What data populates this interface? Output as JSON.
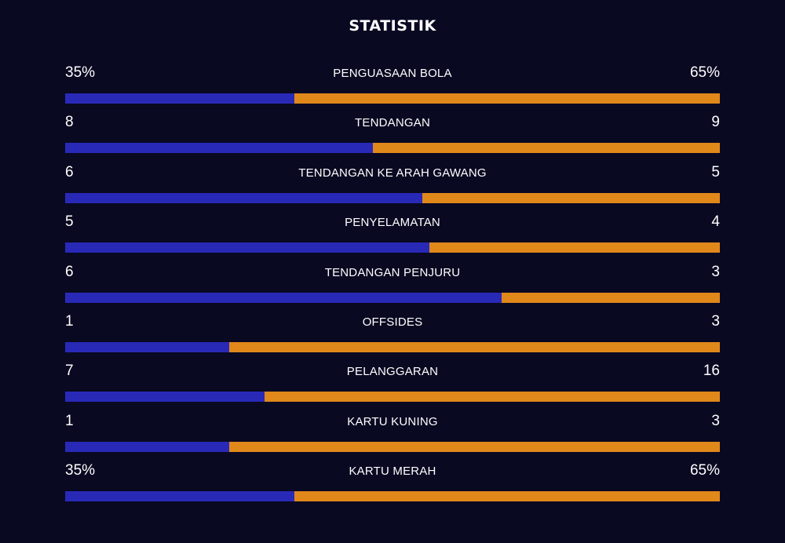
{
  "title": "STATISTIK",
  "colors": {
    "background": "#090922",
    "home": "#2929b8",
    "away": "#e0881a"
  },
  "stats": [
    {
      "label": "PENGUASAAN BOLA",
      "home": "35%",
      "away": "65%",
      "home_share": 0.35
    },
    {
      "label": "TENDANGAN",
      "home": "8",
      "away": "9",
      "home_share": 0.47
    },
    {
      "label": "TENDANGAN KE ARAH GAWANG",
      "home": "6",
      "away": "5",
      "home_share": 0.545
    },
    {
      "label": "PENYELAMATAN",
      "home": "5",
      "away": "4",
      "home_share": 0.556
    },
    {
      "label": "TENDANGAN PENJURU",
      "home": "6",
      "away": "3",
      "home_share": 0.667
    },
    {
      "label": "OFFSIDES",
      "home": "1",
      "away": "3",
      "home_share": 0.25
    },
    {
      "label": "PELANGGARAN",
      "home": "7",
      "away": "16",
      "home_share": 0.304
    },
    {
      "label": "KARTU KUNING",
      "home": "1",
      "away": "3",
      "home_share": 0.25
    },
    {
      "label": "KARTU MERAH",
      "home": "35%",
      "away": "65%",
      "home_share": 0.35
    }
  ]
}
